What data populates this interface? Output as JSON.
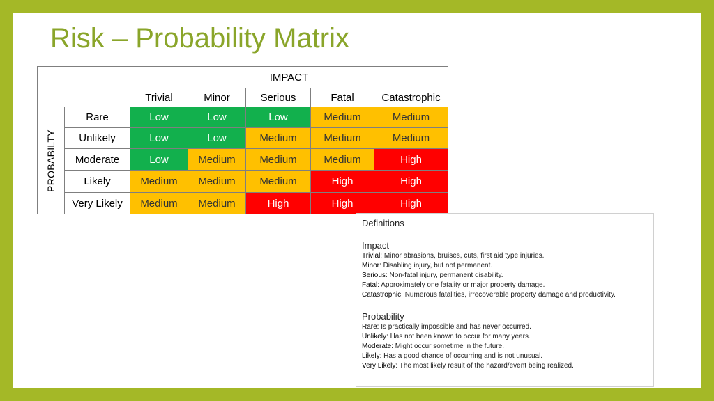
{
  "title": "Risk – Probability Matrix",
  "matrix": {
    "impact_header": "IMPACT",
    "probability_header": "PROBABILTY",
    "impact_levels": [
      "Trivial",
      "Minor",
      "Serious",
      "Fatal",
      "Catastrophic"
    ],
    "rows": [
      {
        "label": "Rare",
        "cells": [
          "Low",
          "Low",
          "Low",
          "Medium",
          "Medium"
        ]
      },
      {
        "label": "Unlikely",
        "cells": [
          "Low",
          "Low",
          "Medium",
          "Medium",
          "Medium"
        ]
      },
      {
        "label": "Moderate",
        "cells": [
          "Low",
          "Medium",
          "Medium",
          "Medium",
          "High"
        ]
      },
      {
        "label": "Likely",
        "cells": [
          "Medium",
          "Medium",
          "Medium",
          "High",
          "High"
        ]
      },
      {
        "label": "Very Likely",
        "cells": [
          "Medium",
          "Medium",
          "High",
          "High",
          "High"
        ]
      }
    ],
    "colors": {
      "Low": "#12b04d",
      "Medium": "#ffc000",
      "High": "#ff0000"
    }
  },
  "definitions": {
    "heading": "Definitions",
    "impact": {
      "title": "Impact",
      "items": [
        {
          "term": "Trivial:",
          "text": " Minor abrasions, bruises, cuts, first aid type injuries."
        },
        {
          "term": "Minor:",
          "text": " Disabling injury, but not permanent."
        },
        {
          "term": "Serious:",
          "text": " Non-fatal injury, permanent disability."
        },
        {
          "term": "Fatal:",
          "text": " Approximately one fatality or major property damage."
        },
        {
          "term": "Catastrophic:",
          "text": " Numerous fatalities, irrecoverable property damage and productivity."
        }
      ]
    },
    "probability": {
      "title": "Probability",
      "items": [
        {
          "term": "Rare:",
          "text": " Is practically impossible and has never occurred."
        },
        {
          "term": "Unlikely:",
          "text": " Has not been known to occur for many years."
        },
        {
          "term": "Moderate:",
          "text": " Might occur sometime in the future."
        },
        {
          "term": "Likely:",
          "text": " Has a good chance of occurring and is not unusual."
        },
        {
          "term": "Very Likely:",
          "text": " The most likely result of the hazard/event being realized."
        }
      ]
    }
  }
}
